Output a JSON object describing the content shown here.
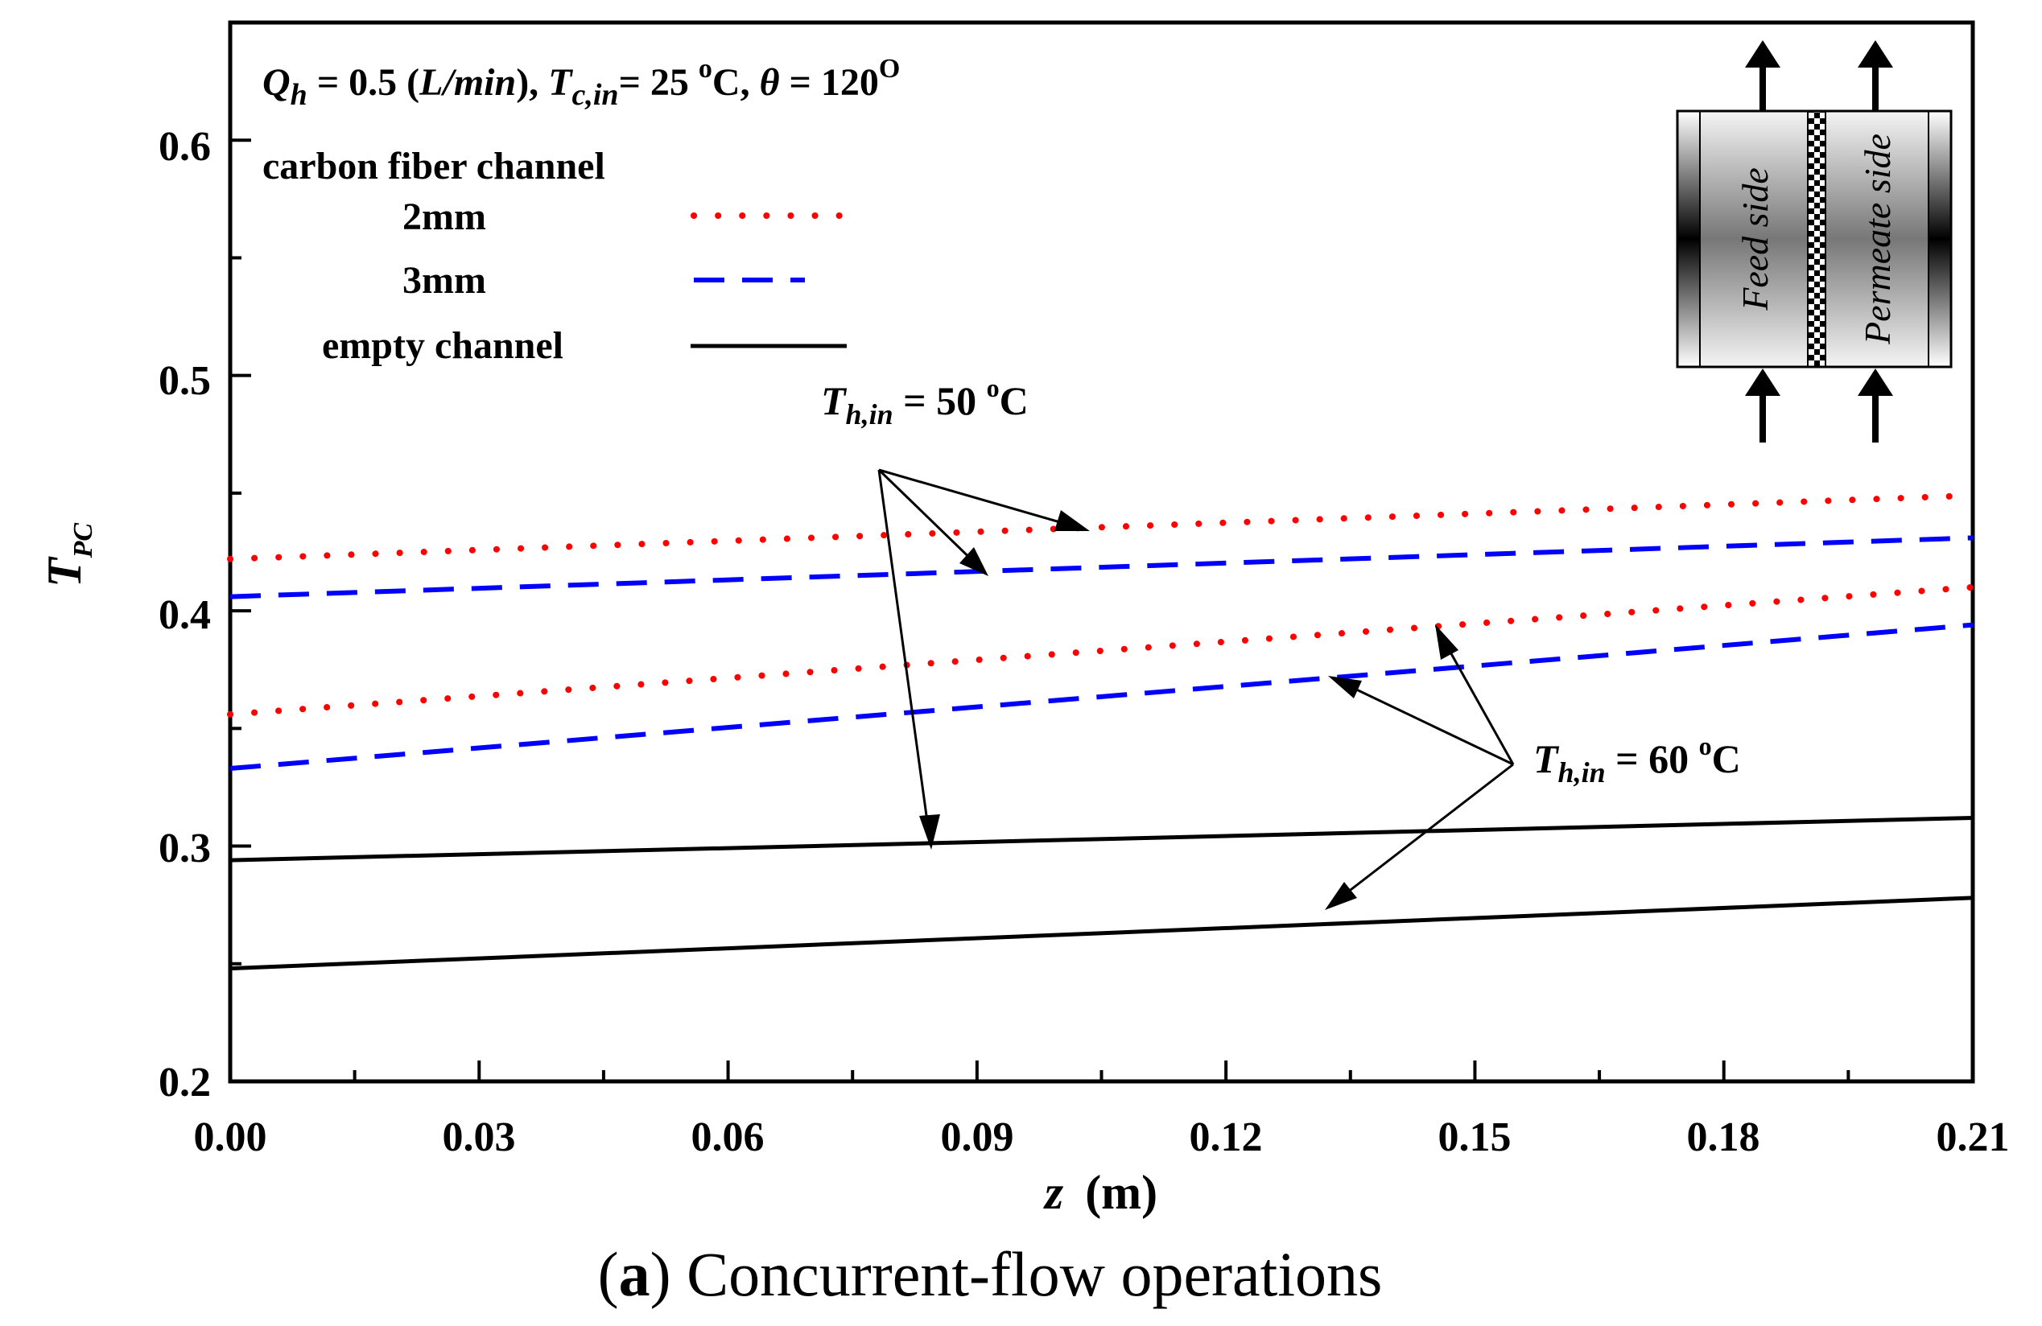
{
  "chart_data": {
    "type": "line",
    "title": "",
    "caption_bold": "a",
    "caption_rest": "Concurrent-flow operations",
    "xlabel_italic": "z",
    "xlabel_rest": "(m)",
    "ylabel_main": "T",
    "ylabel_sub": "PC",
    "xlim": [
      0.0,
      0.21
    ],
    "ylim": [
      0.2,
      0.65
    ],
    "x_ticks": [
      "0.00",
      "0.03",
      "0.06",
      "0.09",
      "0.12",
      "0.15",
      "0.18",
      "0.21"
    ],
    "x_tick_values": [
      0.0,
      0.03,
      0.06,
      0.09,
      0.12,
      0.15,
      0.18,
      0.21
    ],
    "y_ticks": [
      "0.2",
      "0.3",
      "0.4",
      "0.5",
      "0.6"
    ],
    "y_tick_values": [
      0.2,
      0.3,
      0.4,
      0.5,
      0.6
    ],
    "condition": {
      "q_sym": "Q",
      "q_sub": "h",
      "q_val": " = 0.5 (",
      "q_unit": "L/min",
      "q_close": "), ",
      "t_sym": "T",
      "t_sub": "c,in",
      "t_val": "= 25 ",
      "t_deg": "o",
      "t_unit": "C, ",
      "theta_sym": "θ",
      "theta_val": " = 120",
      "theta_deg": "O"
    },
    "legend": {
      "group_label": "carbon fiber channel",
      "entries": [
        "2mm",
        "3mm",
        "empty channel"
      ],
      "colors": [
        "#ff0000",
        "#0000ff",
        "#000000"
      ]
    },
    "annotations": [
      {
        "sym": "T",
        "sub": "h,in",
        "val": " = 50 ",
        "deg": "o",
        "unit": "C"
      },
      {
        "sym": "T",
        "sub": "h,in",
        "val": " = 60 ",
        "deg": "o",
        "unit": "C"
      }
    ],
    "series": [
      {
        "name": "2mm, Th,in = 50 oC",
        "style": "dotted",
        "color": "#ff0000",
        "x": [
          0.0,
          0.21
        ],
        "y": [
          0.422,
          0.449
        ]
      },
      {
        "name": "3mm, Th,in = 50 oC",
        "style": "dashed",
        "color": "#0000ff",
        "x": [
          0.0,
          0.21
        ],
        "y": [
          0.406,
          0.431
        ]
      },
      {
        "name": "2mm, Th,in = 60 oC",
        "style": "dotted",
        "color": "#ff0000",
        "x": [
          0.0,
          0.21
        ],
        "y": [
          0.356,
          0.41
        ]
      },
      {
        "name": "3mm, Th,in = 60 oC",
        "style": "dashed",
        "color": "#0000ff",
        "x": [
          0.0,
          0.21
        ],
        "y": [
          0.333,
          0.394
        ]
      },
      {
        "name": "empty channel, Th,in = 50 oC",
        "style": "solid",
        "color": "#000000",
        "x": [
          0.0,
          0.21
        ],
        "y": [
          0.294,
          0.312
        ]
      },
      {
        "name": "empty channel, Th,in = 60 oC",
        "style": "solid",
        "color": "#000000",
        "x": [
          0.0,
          0.21
        ],
        "y": [
          0.248,
          0.278
        ]
      }
    ],
    "inset": {
      "feed_label": "Feed side",
      "permeate_label": "Permeate side"
    }
  }
}
